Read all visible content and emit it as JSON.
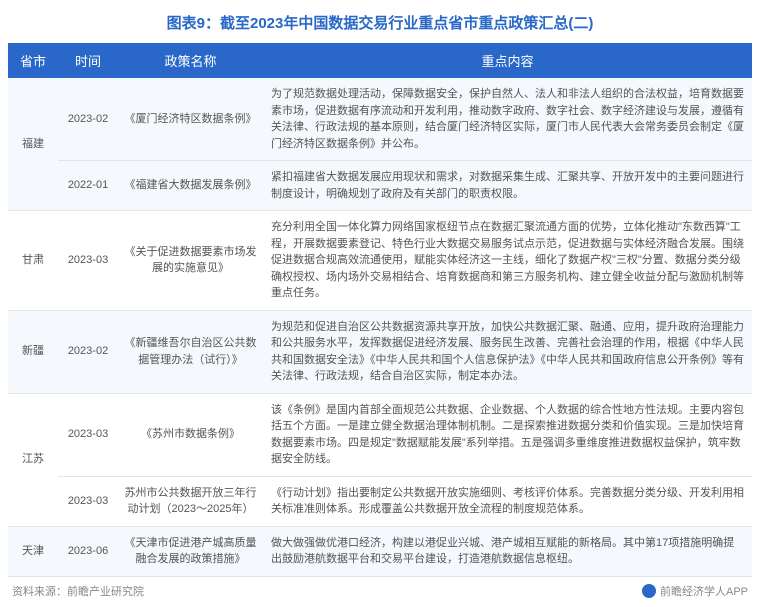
{
  "title": "图表9：截至2023年中国数据交易行业重点省市重点政策汇总(二)",
  "columns": {
    "province": "省市",
    "time": "时间",
    "policy": "政策名称",
    "content": "重点内容"
  },
  "rows": [
    {
      "province": "福建",
      "rowspan": 2,
      "time": "2023-02",
      "policy": "《厦门经济特区数据条例》",
      "content": "为了规范数据处理活动，保障数据安全，保护自然人、法人和非法人组织的合法权益，培育数据要素市场，促进数据有序流动和开发利用，推动数字政府、数字社会、数字经济建设与发展，遵循有关法律、行政法规的基本原则，结合厦门经济特区实际，厦门市人民代表大会常务委员会制定《厦门经济特区数据条例》并公布。"
    },
    {
      "province": "",
      "time": "2022-01",
      "policy": "《福建省大数据发展条例》",
      "content": "紧扣福建省大数据发展应用现状和需求，对数据采集生成、汇聚共享、开放开发中的主要问题进行制度设计，明确规划了政府及有关部门的职责权限。"
    },
    {
      "province": "甘肃",
      "time": "2023-03",
      "policy": "《关于促进数据要素市场发展的实施意见》",
      "content": "充分利用全国一体化算力网络国家枢纽节点在数据汇聚流通方面的优势，立体化推动\"东数西算\"工程，开展数据要素登记、特色行业大数据交易服务试点示范，促进数据与实体经济融合发展。围绕促进数据合规高效流通使用，赋能实体经济这一主线，细化了数据产权\"三权\"分置、数据分类分级确权授权、场内场外交易相结合、培育数据商和第三方服务机构、建立健全收益分配与激励机制等重点任务。"
    },
    {
      "province": "新疆",
      "time": "2023-02",
      "policy": "《新疆维吾尔自治区公共数据管理办法（试行）》",
      "content": "为规范和促进自治区公共数据资源共享开放，加快公共数据汇聚、融通、应用，提升政府治理能力和公共服务水平，发挥数据促进经济发展、服务民生改善、完善社会治理的作用，根据《中华人民共和国数据安全法》《中华人民共和国个人信息保护法》《中华人民共和国政府信息公开条例》等有关法律、行政法规，结合自治区实际，制定本办法。"
    },
    {
      "province": "江苏",
      "rowspan": 2,
      "time": "2023-03",
      "policy": "《苏州市数据条例》",
      "content": "该《条例》是国内首部全面规范公共数据、企业数据、个人数据的综合性地方性法规。主要内容包括五个方面。一是建立健全数据治理体制机制。二是探索推进数据分类和价值实现。三是加快培育数据要素市场。四是规定\"数据赋能发展\"系列举措。五是强调多重维度推进数据权益保护，筑牢数据安全防线。"
    },
    {
      "province": "",
      "time": "2023-03",
      "policy": "苏州市公共数据开放三年行动计划（2023～2025年）",
      "content": "《行动计划》指出要制定公共数据开放实施细则、考核评价体系。完善数据分类分级、开发利用相关标准准则体系。形成覆盖公共数据开放全流程的制度规范体系。"
    },
    {
      "province": "天津",
      "time": "2023-06",
      "policy": "《天津市促进港产城高质量融合发展的政策措施》",
      "content": "做大做强做优港口经济，构建以港促业兴城、港产城相互赋能的新格局。其中第17项措施明确提出鼓励港航数据平台和交易平台建设，打造港航数据信息枢纽。"
    }
  ],
  "footer": {
    "source": "资料来源：前瞻产业研究院",
    "app": "前瞻经济学人APP"
  },
  "colors": {
    "header_bg": "#2968c8",
    "header_text": "#ffffff",
    "title_color": "#2968c8",
    "odd_row_bg": "#f5f8fc",
    "even_row_bg": "#ffffff",
    "cell_text": "#555555",
    "border": "#e5e5e5",
    "footer_text": "#888888"
  }
}
